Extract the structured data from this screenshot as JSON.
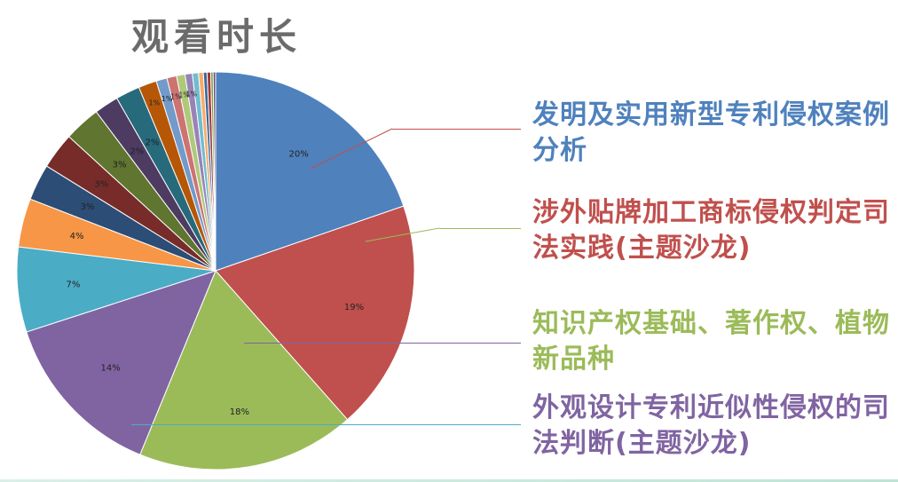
{
  "title": "观看时长",
  "colors": {
    "title": "#6b6b6b",
    "callout_blue": "#4f81bd",
    "callout_red": "#c0504d",
    "callout_green": "#9bbb59",
    "callout_purple": "#8064a2"
  },
  "callouts": [
    {
      "text": "发明及实用新型专利侵权案例分析",
      "color": "#4f81bd",
      "line_color": "#c0504d"
    },
    {
      "text": "涉外贴牌加工商标侵权判定司法实践(主题沙龙)",
      "color": "#c0504d",
      "line_color": "#9bbb59"
    },
    {
      "text": "知识产权基础、著作权、植物新品种",
      "color": "#9bbb59",
      "line_color": "#8064a2"
    },
    {
      "text": "外观设计专利近似性侵权的司法判断(主题沙龙)",
      "color": "#8064a2",
      "line_color": "#4bacc6"
    }
  ],
  "chart_data": {
    "type": "pie",
    "title": "观看时长",
    "start_angle_deg": 0,
    "direction": "clockwise",
    "slices": [
      {
        "label": "20%",
        "value": 20,
        "color": "#4f81bd"
      },
      {
        "label": "19%",
        "value": 19,
        "color": "#c0504d"
      },
      {
        "label": "18%",
        "value": 18,
        "color": "#9bbb59"
      },
      {
        "label": "14%",
        "value": 14,
        "color": "#8064a2"
      },
      {
        "label": "7%",
        "value": 7,
        "color": "#4bacc6"
      },
      {
        "label": "4%",
        "value": 4,
        "color": "#f79646"
      },
      {
        "label": "3%",
        "value": 3,
        "color": "#2c4d75"
      },
      {
        "label": "3%",
        "value": 3,
        "color": "#772c2a"
      },
      {
        "label": "3%",
        "value": 3,
        "color": "#5f7530"
      },
      {
        "label": "2%",
        "value": 2,
        "color": "#4d3b62"
      },
      {
        "label": "2%",
        "value": 2,
        "color": "#276a7c"
      },
      {
        "label": "1%",
        "value": 1.5,
        "color": "#b65708"
      },
      {
        "label": "1%",
        "value": 0.9,
        "color": "#729aca"
      },
      {
        "label": "1%",
        "value": 0.8,
        "color": "#cd7371"
      },
      {
        "label": "1%",
        "value": 0.7,
        "color": "#afc97a"
      },
      {
        "label": "1%",
        "value": 0.6,
        "color": "#9983b5"
      },
      {
        "label": "",
        "value": 0.5,
        "color": "#6fbdd1"
      },
      {
        "label": "",
        "value": 0.4,
        "color": "#f9ab6b"
      },
      {
        "label": "",
        "value": 0.3,
        "color": "#3a679c"
      },
      {
        "label": "",
        "value": 0.3,
        "color": "#9e3b38"
      },
      {
        "label": "",
        "value": 0.2,
        "color": "#7e9c40"
      },
      {
        "label": "",
        "value": 0.2,
        "color": "#664f83"
      }
    ]
  }
}
